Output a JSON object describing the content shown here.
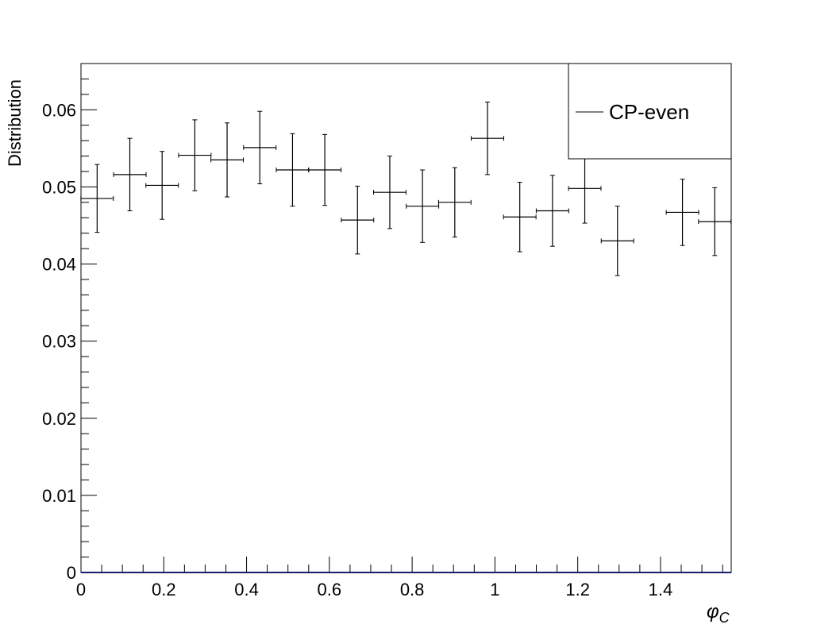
{
  "chart_data": {
    "type": "scatter",
    "style": "histogram-with-error-bars",
    "title": "",
    "xlabel": "φ",
    "xlabel_subscript": "C",
    "ylabel": "Distribution",
    "xlim": [
      0,
      1.5708
    ],
    "ylim": [
      0,
      0.066
    ],
    "x_ticks": [
      0,
      0.2,
      0.4,
      0.6,
      0.8,
      1,
      1.2,
      1.4
    ],
    "x_tick_labels": [
      "0",
      "0.2",
      "0.4",
      "0.6",
      "0.8",
      "1",
      "1.2",
      "1.4"
    ],
    "y_ticks": [
      0,
      0.01,
      0.02,
      0.03,
      0.04,
      0.05,
      0.06
    ],
    "y_tick_labels": [
      "0",
      "0.01",
      "0.02",
      "0.03",
      "0.04",
      "0.05",
      "0.06"
    ],
    "legend": {
      "position": "top-right",
      "entries": [
        "CP-even"
      ]
    },
    "bin_width": 0.0785,
    "series": [
      {
        "name": "CP-even",
        "color": "#000000",
        "x": [
          0.039,
          0.118,
          0.196,
          0.275,
          0.353,
          0.432,
          0.511,
          0.589,
          0.668,
          0.746,
          0.825,
          0.903,
          0.982,
          1.06,
          1.139,
          1.217,
          1.296,
          1.374,
          1.453,
          1.531
        ],
        "y": [
          0.0485,
          0.0516,
          0.0502,
          0.0541,
          0.0535,
          0.0551,
          0.0522,
          0.0522,
          0.0457,
          0.0493,
          0.0475,
          0.048,
          0.0563,
          0.0461,
          0.0469,
          0.0498,
          0.043,
          null,
          0.0467,
          0.0455
        ],
        "yerr": [
          0.0044,
          0.0047,
          0.0044,
          0.0046,
          0.0048,
          0.0047,
          0.0047,
          0.0046,
          0.0044,
          0.0047,
          0.0047,
          0.0045,
          0.0047,
          0.0045,
          0.0046,
          0.0045,
          0.0045,
          null,
          0.0043,
          0.0044
        ]
      }
    ]
  },
  "colors": {
    "baseline": "#1a1a6e",
    "axis": "#000000"
  }
}
